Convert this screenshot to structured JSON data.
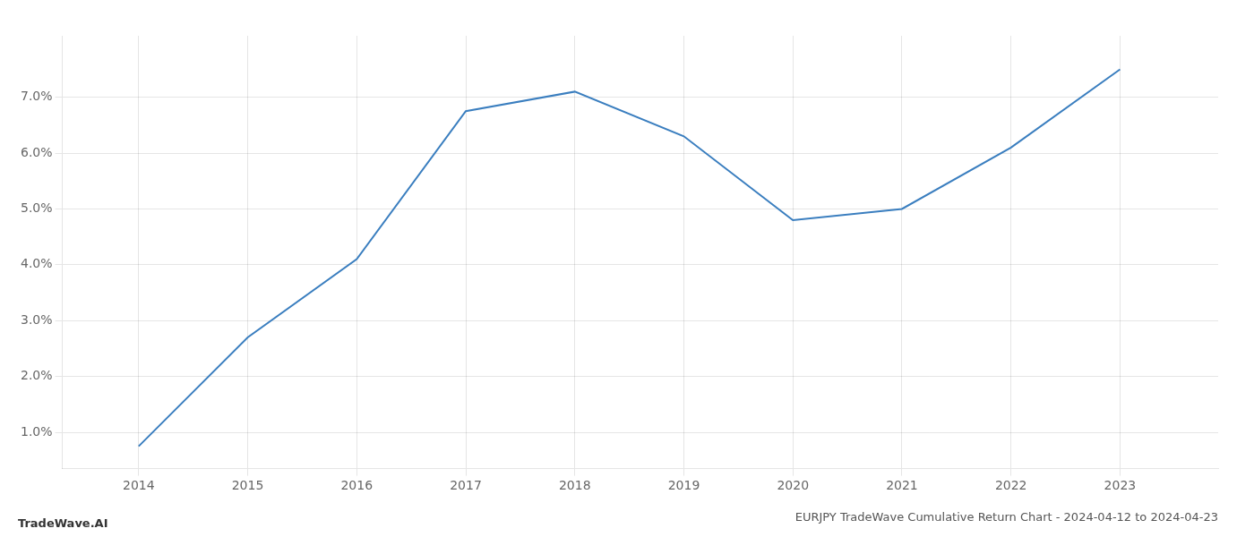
{
  "chart_data": {
    "type": "line",
    "title": "EURJPY TradeWave Cumulative Return Chart - 2024-04-12 to 2024-04-23",
    "annotations": [
      "TradeWave.AI"
    ],
    "x": [
      2014,
      2015,
      2016,
      2017,
      2018,
      2019,
      2020,
      2021,
      2022,
      2023
    ],
    "values": [
      0.75,
      2.7,
      4.1,
      6.75,
      7.1,
      6.3,
      4.8,
      5.0,
      6.1,
      7.5
    ],
    "color": "#3a7ebf",
    "xlim": [
      2013.3,
      2023.9
    ],
    "xticks": [
      2014,
      2015,
      2016,
      2017,
      2018,
      2019,
      2020,
      2021,
      2022,
      2023
    ],
    "ylim": [
      0.35,
      8.1
    ],
    "yticks": [
      {
        "value": 1.0,
        "label": "1.0%"
      },
      {
        "value": 2.0,
        "label": "2.0%"
      },
      {
        "value": 3.0,
        "label": "3.0%"
      },
      {
        "value": 4.0,
        "label": "4.0%"
      },
      {
        "value": 5.0,
        "label": "5.0%"
      },
      {
        "value": 6.0,
        "label": "6.0%"
      },
      {
        "value": 7.0,
        "label": "7.0%"
      }
    ],
    "grid": true
  }
}
